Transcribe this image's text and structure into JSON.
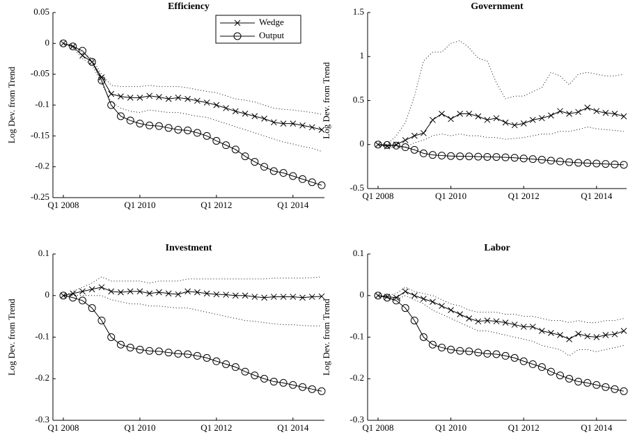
{
  "chart_data": [
    {
      "type": "line",
      "title": "Efficiency",
      "y_label": "Log Dev. from Trend",
      "legend": "upper right",
      "categories": [
        "Q1 2008",
        null,
        null,
        null,
        null,
        null,
        null,
        null,
        "Q1 2010",
        null,
        null,
        null,
        null,
        null,
        null,
        null,
        "Q1 2012",
        null,
        null,
        null,
        null,
        null,
        null,
        null,
        "Q1 2014",
        null,
        null,
        null
      ],
      "ylim": [
        -0.25,
        0.05
      ],
      "yticks": [
        -0.25,
        -0.2,
        -0.15,
        -0.1,
        -0.05,
        0,
        0.05
      ],
      "series": [
        {
          "name": "Wedge",
          "color": "#000000",
          "marker": "x",
          "line_style": "solid",
          "values": [
            0,
            -0.005,
            -0.02,
            -0.03,
            -0.055,
            -0.082,
            -0.086,
            -0.088,
            -0.088,
            -0.085,
            -0.087,
            -0.09,
            -0.088,
            -0.09,
            -0.093,
            -0.096,
            -0.1,
            -0.105,
            -0.11,
            -0.114,
            -0.118,
            -0.122,
            -0.128,
            -0.13,
            -0.13,
            -0.133,
            -0.136,
            -0.14
          ]
        },
        {
          "name": "Output",
          "color": "#000000",
          "marker": "o",
          "line_style": "solid",
          "values": [
            0,
            -0.005,
            -0.012,
            -0.03,
            -0.06,
            -0.1,
            -0.118,
            -0.125,
            -0.13,
            -0.133,
            -0.134,
            -0.137,
            -0.14,
            -0.141,
            -0.145,
            -0.15,
            -0.158,
            -0.165,
            -0.172,
            -0.183,
            -0.192,
            -0.2,
            -0.207,
            -0.21,
            -0.215,
            -0.22,
            -0.225,
            -0.23
          ]
        },
        {
          "color": "#000000",
          "line_style": "dotted",
          "values": [
            0,
            -0.003,
            -0.015,
            -0.025,
            -0.05,
            -0.068,
            -0.07,
            -0.07,
            -0.07,
            -0.068,
            -0.07,
            -0.07,
            -0.07,
            -0.072,
            -0.075,
            -0.078,
            -0.08,
            -0.085,
            -0.09,
            -0.092,
            -0.095,
            -0.1,
            -0.105,
            -0.107,
            -0.108,
            -0.11,
            -0.112,
            -0.115
          ]
        },
        {
          "color": "#000000",
          "line_style": "dotted",
          "values": [
            0,
            -0.007,
            -0.025,
            -0.035,
            -0.065,
            -0.095,
            -0.105,
            -0.11,
            -0.112,
            -0.108,
            -0.11,
            -0.112,
            -0.112,
            -0.115,
            -0.118,
            -0.12,
            -0.125,
            -0.13,
            -0.135,
            -0.14,
            -0.145,
            -0.15,
            -0.155,
            -0.16,
            -0.163,
            -0.167,
            -0.17,
            -0.175
          ]
        }
      ]
    },
    {
      "type": "line",
      "title": "Government",
      "y_label": "Log Dev. from Trend",
      "categories": [
        "Q1 2008",
        null,
        null,
        null,
        null,
        null,
        null,
        null,
        "Q1 2010",
        null,
        null,
        null,
        null,
        null,
        null,
        null,
        "Q1 2012",
        null,
        null,
        null,
        null,
        null,
        null,
        null,
        "Q1 2014",
        null,
        null,
        null
      ],
      "ylim": [
        -0.5,
        1.5
      ],
      "yticks": [
        -0.5,
        0,
        0.5,
        1,
        1.5
      ],
      "series": [
        {
          "color": "#000000",
          "marker": "x",
          "line_style": "solid",
          "values": [
            0,
            -0.02,
            0,
            0.05,
            0.1,
            0.13,
            0.28,
            0.35,
            0.29,
            0.35,
            0.35,
            0.32,
            0.28,
            0.3,
            0.25,
            0.22,
            0.24,
            0.28,
            0.3,
            0.33,
            0.38,
            0.35,
            0.37,
            0.42,
            0.38,
            0.36,
            0.35,
            0.32
          ]
        },
        {
          "color": "#000000",
          "marker": "o",
          "line_style": "solid",
          "values": [
            0,
            -0.005,
            -0.012,
            -0.03,
            -0.06,
            -0.1,
            -0.118,
            -0.125,
            -0.13,
            -0.133,
            -0.134,
            -0.137,
            -0.14,
            -0.141,
            -0.145,
            -0.15,
            -0.158,
            -0.165,
            -0.172,
            -0.183,
            -0.192,
            -0.2,
            -0.207,
            -0.21,
            -0.215,
            -0.22,
            -0.225,
            -0.23
          ]
        },
        {
          "color": "#000000",
          "line_style": "dotted",
          "values": [
            0,
            0,
            0.1,
            0.25,
            0.55,
            0.95,
            1.05,
            1.05,
            1.15,
            1.18,
            1.1,
            0.98,
            0.95,
            0.7,
            0.52,
            0.55,
            0.55,
            0.6,
            0.65,
            0.82,
            0.78,
            0.68,
            0.8,
            0.82,
            0.8,
            0.78,
            0.78,
            0.8
          ]
        },
        {
          "color": "#000000",
          "line_style": "dotted",
          "values": [
            0,
            -0.03,
            -0.03,
            -0.03,
            0.02,
            0.05,
            0.1,
            0.12,
            0.1,
            0.12,
            0.1,
            0.1,
            0.08,
            0.08,
            0.06,
            0.07,
            0.08,
            0.1,
            0.12,
            0.12,
            0.15,
            0.15,
            0.17,
            0.2,
            0.18,
            0.17,
            0.16,
            0.15
          ]
        }
      ]
    },
    {
      "type": "line",
      "title": "Investment",
      "y_label": "Log Dev. from Trend",
      "categories": [
        "Q1 2008",
        null,
        null,
        null,
        null,
        null,
        null,
        null,
        "Q1 2010",
        null,
        null,
        null,
        null,
        null,
        null,
        null,
        "Q1 2012",
        null,
        null,
        null,
        null,
        null,
        null,
        null,
        "Q1 2014",
        null,
        null,
        null
      ],
      "ylim": [
        -0.3,
        0.1
      ],
      "yticks": [
        -0.3,
        -0.2,
        -0.1,
        0,
        0.1
      ],
      "series": [
        {
          "color": "#000000",
          "marker": "x",
          "line_style": "solid",
          "values": [
            0,
            0.005,
            0.01,
            0.015,
            0.02,
            0.01,
            0.008,
            0.01,
            0.01,
            0.005,
            0.008,
            0.005,
            0.003,
            0.01,
            0.008,
            0.005,
            0.003,
            0.002,
            0,
            0,
            -0.003,
            -0.005,
            -0.003,
            -0.003,
            -0.003,
            -0.005,
            -0.003,
            -0.002
          ]
        },
        {
          "color": "#000000",
          "marker": "o",
          "line_style": "solid",
          "values": [
            0,
            -0.005,
            -0.012,
            -0.03,
            -0.06,
            -0.1,
            -0.118,
            -0.125,
            -0.13,
            -0.133,
            -0.134,
            -0.137,
            -0.14,
            -0.141,
            -0.145,
            -0.15,
            -0.158,
            -0.165,
            -0.172,
            -0.183,
            -0.192,
            -0.2,
            -0.207,
            -0.21,
            -0.215,
            -0.22,
            -0.225,
            -0.23
          ]
        },
        {
          "color": "#000000",
          "line_style": "dotted",
          "values": [
            0,
            0.01,
            0.02,
            0.03,
            0.045,
            0.035,
            0.035,
            0.035,
            0.035,
            0.03,
            0.035,
            0.035,
            0.035,
            0.04,
            0.04,
            0.04,
            0.04,
            0.04,
            0.04,
            0.04,
            0.04,
            0.04,
            0.042,
            0.042,
            0.042,
            0.042,
            0.043,
            0.045
          ]
        },
        {
          "color": "#000000",
          "line_style": "dotted",
          "values": [
            0,
            0,
            0,
            0,
            0,
            -0.01,
            -0.015,
            -0.02,
            -0.02,
            -0.025,
            -0.025,
            -0.028,
            -0.03,
            -0.03,
            -0.035,
            -0.04,
            -0.045,
            -0.05,
            -0.055,
            -0.06,
            -0.062,
            -0.065,
            -0.068,
            -0.07,
            -0.07,
            -0.072,
            -0.073,
            -0.073
          ]
        }
      ]
    },
    {
      "type": "line",
      "title": "Labor",
      "y_label": "Log Dev. from Trend",
      "categories": [
        "Q1 2008",
        null,
        null,
        null,
        null,
        null,
        null,
        null,
        "Q1 2010",
        null,
        null,
        null,
        null,
        null,
        null,
        null,
        "Q1 2012",
        null,
        null,
        null,
        null,
        null,
        null,
        null,
        "Q1 2014",
        null,
        null,
        null
      ],
      "ylim": [
        -0.3,
        0.1
      ],
      "yticks": [
        -0.3,
        -0.2,
        -0.1,
        0,
        0.1
      ],
      "series": [
        {
          "color": "#000000",
          "marker": "x",
          "line_style": "solid",
          "values": [
            0,
            -0.003,
            -0.005,
            0.01,
            0,
            -0.008,
            -0.015,
            -0.025,
            -0.035,
            -0.045,
            -0.055,
            -0.062,
            -0.06,
            -0.062,
            -0.065,
            -0.07,
            -0.075,
            -0.075,
            -0.085,
            -0.09,
            -0.095,
            -0.105,
            -0.092,
            -0.098,
            -0.1,
            -0.095,
            -0.093,
            -0.085
          ]
        },
        {
          "color": "#000000",
          "marker": "o",
          "line_style": "solid",
          "values": [
            0,
            -0.005,
            -0.012,
            -0.03,
            -0.06,
            -0.1,
            -0.118,
            -0.125,
            -0.13,
            -0.133,
            -0.134,
            -0.137,
            -0.14,
            -0.141,
            -0.145,
            -0.15,
            -0.158,
            -0.165,
            -0.172,
            -0.183,
            -0.192,
            -0.2,
            -0.207,
            -0.21,
            -0.215,
            -0.22,
            -0.225,
            -0.23
          ]
        },
        {
          "color": "#000000",
          "line_style": "dotted",
          "values": [
            0,
            0,
            0.005,
            0.02,
            0.01,
            0.005,
            0,
            -0.01,
            -0.02,
            -0.025,
            -0.035,
            -0.04,
            -0.04,
            -0.04,
            -0.045,
            -0.045,
            -0.05,
            -0.05,
            -0.055,
            -0.06,
            -0.06,
            -0.065,
            -0.06,
            -0.065,
            -0.065,
            -0.06,
            -0.06,
            -0.055
          ]
        },
        {
          "color": "#000000",
          "line_style": "dotted",
          "values": [
            0,
            -0.005,
            -0.01,
            0,
            -0.01,
            -0.02,
            -0.035,
            -0.045,
            -0.055,
            -0.065,
            -0.075,
            -0.085,
            -0.085,
            -0.09,
            -0.095,
            -0.1,
            -0.105,
            -0.11,
            -0.12,
            -0.125,
            -0.13,
            -0.145,
            -0.13,
            -0.13,
            -0.135,
            -0.13,
            -0.125,
            -0.12
          ]
        }
      ]
    }
  ]
}
